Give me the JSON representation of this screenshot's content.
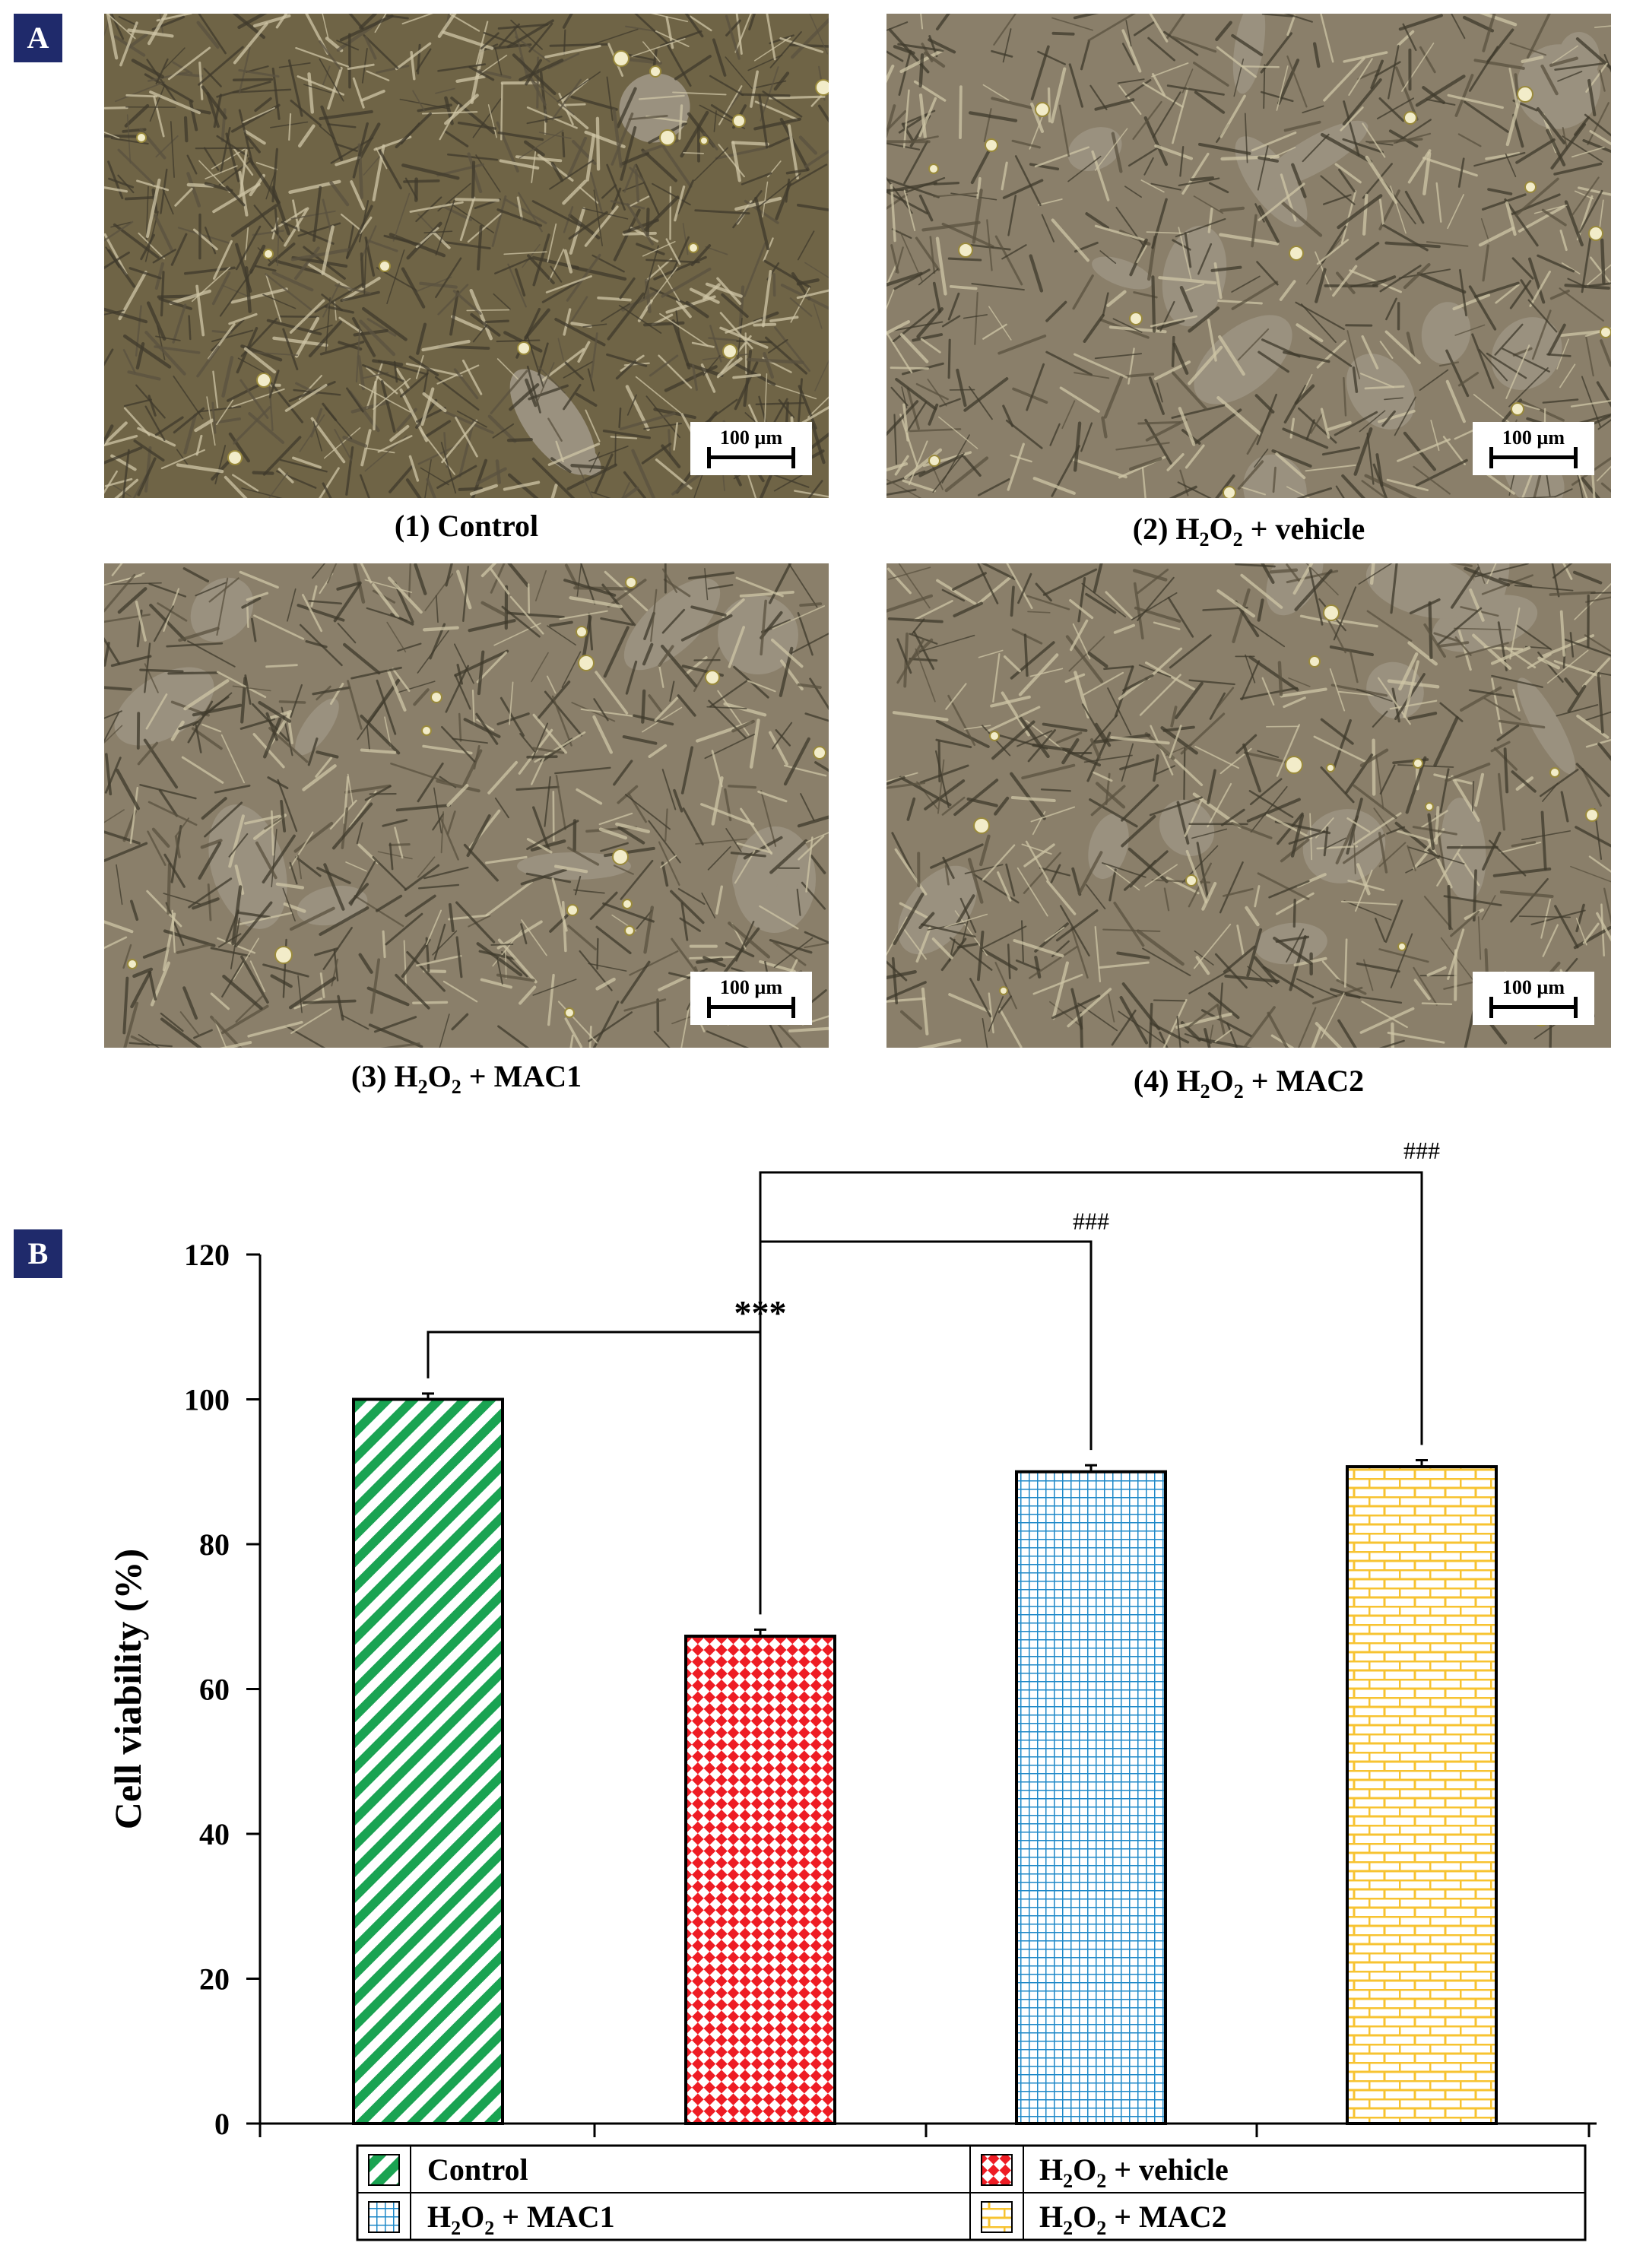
{
  "panel_a": {
    "badge": "A",
    "images": [
      {
        "prefix": "(1) Control",
        "scale_bar": "100 µm"
      },
      {
        "prefix": "(2) H",
        "sub1": "2",
        "mid": "O",
        "sub2": "2",
        "suffix": " + vehicle",
        "scale_bar": "100 µm"
      },
      {
        "prefix": "(3) H",
        "sub1": "2",
        "mid": "O",
        "sub2": "2",
        "suffix": " + MAC1",
        "scale_bar": "100 µm"
      },
      {
        "prefix": "(4) H",
        "sub1": "2",
        "mid": "O",
        "sub2": "2",
        "suffix": " + MAC2",
        "scale_bar": "100 µm"
      }
    ]
  },
  "panel_b": {
    "badge": "B"
  },
  "colors": {
    "control": "#1aa352",
    "vehicle": "#ee1c24",
    "mac1": "#1e88c8",
    "mac2": "#f7c331",
    "badge_bg": "#1f2a6b"
  },
  "chart_data": {
    "type": "bar",
    "categories": [
      "Control",
      "H2O2 + vehicle",
      "H2O2 + MAC1",
      "H2O2 + MAC2"
    ],
    "values": [
      100.0,
      67.3,
      90.0,
      90.7
    ],
    "errors": [
      0.8,
      0.9,
      0.9,
      0.9
    ],
    "ylabel": "Cell viability (%)",
    "xlabel": "",
    "ylim": [
      0,
      120
    ],
    "yticks": [
      0,
      20,
      40,
      60,
      80,
      100,
      120
    ],
    "patterns": [
      "diagonal-stripes",
      "diamond-checker",
      "grid",
      "brick"
    ],
    "significance": [
      {
        "from": 0,
        "to": 1,
        "label": "***"
      },
      {
        "from": 1,
        "to": 2,
        "label": "###"
      },
      {
        "from": 1,
        "to": 3,
        "label": "###"
      }
    ],
    "legend": {
      "placement": "bottom",
      "entries": [
        {
          "prefix": "Control",
          "sub1": "",
          "mid": "",
          "sub2": "",
          "suffix": ""
        },
        {
          "prefix": "H",
          "sub1": "2",
          "mid": "O",
          "sub2": "2",
          "suffix": " + vehicle"
        },
        {
          "prefix": "H",
          "sub1": "2",
          "mid": "O",
          "sub2": "2",
          "suffix": " + MAC1"
        },
        {
          "prefix": "H",
          "sub1": "2",
          "mid": "O",
          "sub2": "2",
          "suffix": " + MAC2"
        }
      ]
    },
    "grid": false
  }
}
